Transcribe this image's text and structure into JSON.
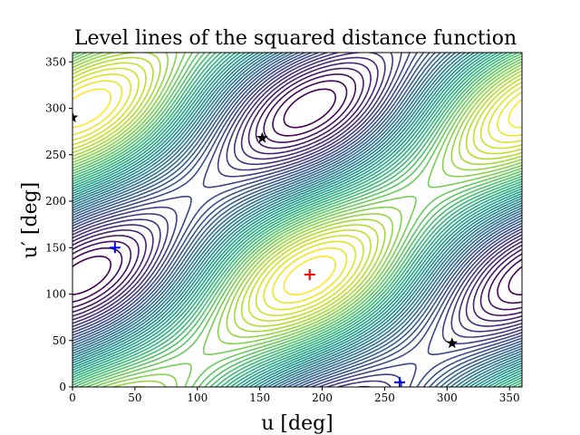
{
  "chart_data": {
    "type": "contour",
    "title": "Level lines of the squared distance function",
    "xlabel": "u [deg]",
    "ylabel": "u′ [deg]",
    "xlim": [
      0,
      360
    ],
    "ylim": [
      0,
      360
    ],
    "xticks": [
      "0",
      "50",
      "100",
      "150",
      "200",
      "250",
      "300",
      "350"
    ],
    "yticks": [
      "0",
      "50",
      "100",
      "150",
      "200",
      "250",
      "300",
      "350"
    ],
    "grid": false,
    "legend": "none",
    "colormap": "viridis",
    "markers": {
      "minimum_red": [
        {
          "x": 190,
          "y": 121
        }
      ],
      "saddle_blue": [
        {
          "x": 34,
          "y": 150
        },
        {
          "x": 262,
          "y": 5
        }
      ],
      "maximum_black": [
        {
          "x": 0,
          "y": 290
        },
        {
          "x": 152,
          "y": 268
        },
        {
          "x": 304,
          "y": 47
        }
      ]
    },
    "colors": {
      "min_marker": "#ff0000",
      "saddle_marker": "#0000ff",
      "max_marker": "#000000",
      "level_low": "#fde725",
      "level_high": "#440154"
    }
  }
}
